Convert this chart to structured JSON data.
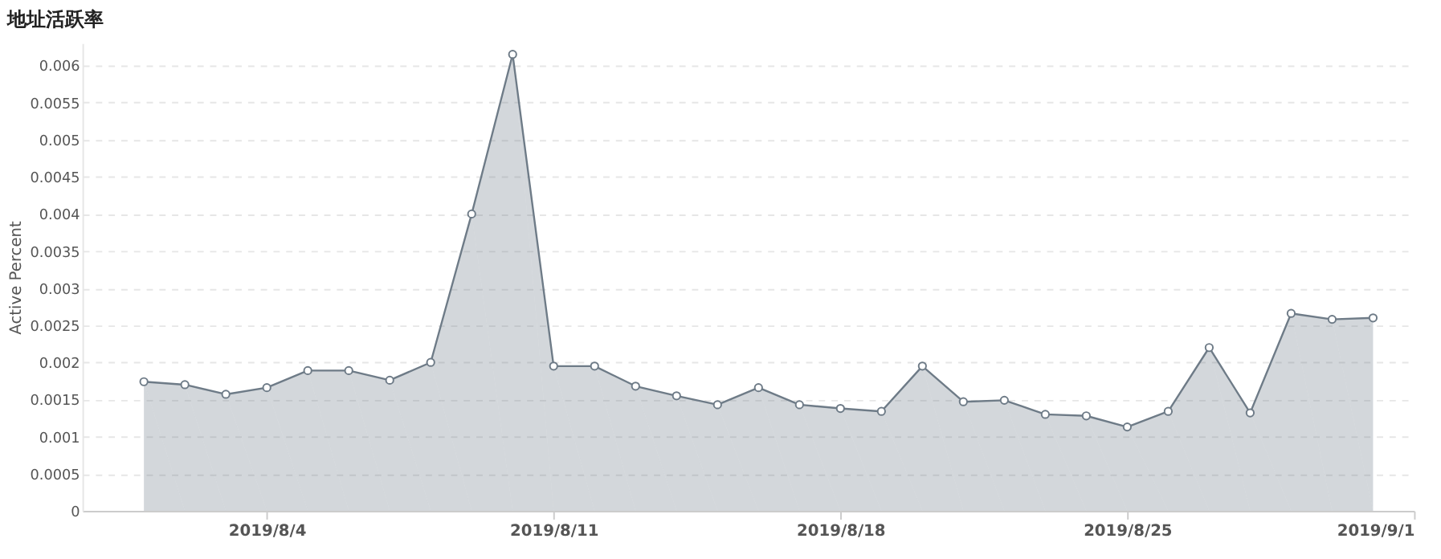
{
  "chart_data": {
    "type": "area",
    "title": "地址活跃率",
    "ylabel": "Active Percent",
    "x": [
      "2019-08-01",
      "2019-08-02",
      "2019-08-03",
      "2019-08-04",
      "2019-08-05",
      "2019-08-06",
      "2019-08-07",
      "2019-08-08",
      "2019-08-09",
      "2019-08-10",
      "2019-08-11",
      "2019-08-12",
      "2019-08-13",
      "2019-08-14",
      "2019-08-15",
      "2019-08-16",
      "2019-08-17",
      "2019-08-18",
      "2019-08-19",
      "2019-08-20",
      "2019-08-21",
      "2019-08-22",
      "2019-08-23",
      "2019-08-24",
      "2019-08-25",
      "2019-08-26",
      "2019-08-27",
      "2019-08-28",
      "2019-08-29",
      "2019-08-30",
      "2019-08-31"
    ],
    "series": [
      {
        "color": "#6e7b87",
        "values": [
          0.00174,
          0.0017,
          0.00157,
          0.00166,
          0.00189,
          0.00189,
          0.00176,
          0.002,
          0.004,
          0.00615,
          0.00195,
          0.00195,
          0.00168,
          0.00155,
          0.00143,
          0.00166,
          0.00143,
          0.00138,
          0.00134,
          0.00195,
          0.00147,
          0.00149,
          0.0013,
          0.00128,
          0.00113,
          0.00134,
          0.0022,
          0.00132,
          0.00266,
          0.00258,
          0.0026
        ]
      }
    ],
    "xlim": [
      "2019-07-30T12:00",
      "2019-09-01"
    ],
    "xticks": [
      {
        "value": "2019-08-04",
        "label": "2019/8/4"
      },
      {
        "value": "2019-08-11",
        "label": "2019/8/11"
      },
      {
        "value": "2019-08-18",
        "label": "2019/8/18"
      },
      {
        "value": "2019-08-25",
        "label": "2019/8/25"
      },
      {
        "value": "2019-09-01",
        "label": "2019/9/1"
      }
    ],
    "ylim": [
      0,
      0.0063
    ],
    "yticks": [
      0,
      0.0005,
      0.001,
      0.0015,
      0.002,
      0.0025,
      0.003,
      0.0035,
      0.004,
      0.0045,
      0.005,
      0.0055,
      0.006
    ],
    "grid": "y",
    "marker": "circle",
    "line_style": "solid"
  }
}
